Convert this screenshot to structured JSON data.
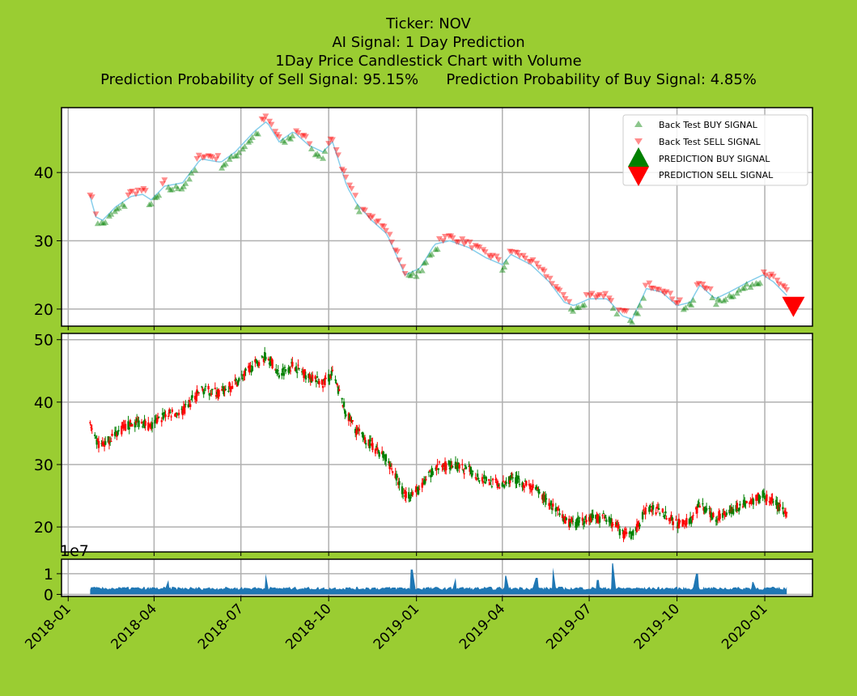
{
  "titles": {
    "line1": "Ticker: NOV",
    "line2": "AI Signal: 1 Day Prediction",
    "line3": "1Day Price Candlestick Chart with Volume",
    "line4": "Prediction Probability of Sell Signal: 95.15%      Prediction Probability of Buy Signal: 4.85%"
  },
  "colors": {
    "background": "#9acd32",
    "buy": "#008000",
    "sell": "#ff0000",
    "price_line": "#87ceeb",
    "volume": "#1f77b4",
    "grid": "#b0b0b0"
  },
  "chart_data": [
    {
      "type": "scatter",
      "panel": "signals",
      "ylim": [
        17.5,
        49.5
      ],
      "y_ticks": [
        "20",
        "30",
        "40"
      ],
      "x_range": [
        "2017-12-25",
        "2020-02-20"
      ],
      "grid": true,
      "legend": {
        "placement": "top-right",
        "entries": [
          "Back Test BUY SIGNAL",
          "Back Test SELL SIGNAL",
          "PREDICTION BUY SIGNAL",
          "PREDICTION SELL SIGNAL"
        ]
      },
      "prediction_sell": {
        "x": "2020-01-31",
        "y": 20.5
      },
      "price_path": [
        [
          "2018-01-24",
          36.5
        ],
        [
          "2018-01-30",
          33.5
        ],
        [
          "2018-02-06",
          33.0
        ],
        [
          "2018-02-20",
          35.0
        ],
        [
          "2018-03-08",
          36.5
        ],
        [
          "2018-03-20",
          36.8
        ],
        [
          "2018-03-29",
          36.0
        ],
        [
          "2018-04-12",
          38.0
        ],
        [
          "2018-05-01",
          38.5
        ],
        [
          "2018-05-20",
          42.0
        ],
        [
          "2018-06-10",
          41.5
        ],
        [
          "2018-06-25",
          43.0
        ],
        [
          "2018-07-15",
          46.0
        ],
        [
          "2018-07-28",
          47.5
        ],
        [
          "2018-08-10",
          44.5
        ],
        [
          "2018-08-25",
          46.0
        ],
        [
          "2018-09-10",
          44.0
        ],
        [
          "2018-09-25",
          43.0
        ],
        [
          "2018-10-05",
          44.5
        ],
        [
          "2018-10-20",
          38.0
        ],
        [
          "2018-10-30",
          35.5
        ],
        [
          "2018-11-15",
          33.0
        ],
        [
          "2018-12-01",
          31.0
        ],
        [
          "2018-12-20",
          25.0
        ],
        [
          "2019-01-05",
          26.0
        ],
        [
          "2019-01-20",
          29.5
        ],
        [
          "2019-02-05",
          30.0
        ],
        [
          "2019-02-25",
          29.0
        ],
        [
          "2019-03-15",
          27.5
        ],
        [
          "2019-04-01",
          26.5
        ],
        [
          "2019-04-10",
          28.0
        ],
        [
          "2019-05-01",
          26.5
        ],
        [
          "2019-05-20",
          24.0
        ],
        [
          "2019-06-05",
          21.0
        ],
        [
          "2019-06-15",
          20.5
        ],
        [
          "2019-07-01",
          21.5
        ],
        [
          "2019-07-20",
          21.5
        ],
        [
          "2019-08-05",
          19.0
        ],
        [
          "2019-08-15",
          18.5
        ],
        [
          "2019-08-30",
          23.0
        ],
        [
          "2019-09-15",
          22.5
        ],
        [
          "2019-10-01",
          20.5
        ],
        [
          "2019-10-15",
          21.0
        ],
        [
          "2019-10-25",
          23.5
        ],
        [
          "2019-11-10",
          21.5
        ],
        [
          "2019-11-25",
          22.5
        ],
        [
          "2019-12-15",
          24.0
        ],
        [
          "2019-12-30",
          25.0
        ],
        [
          "2020-01-10",
          24.0
        ],
        [
          "2020-01-24",
          22.0
        ]
      ],
      "sell_segments": [
        [
          "2018-01-24",
          "2018-01-30"
        ],
        [
          "2018-03-05",
          "2018-03-25"
        ],
        [
          "2018-04-08",
          "2018-04-14"
        ],
        [
          "2018-05-15",
          "2018-06-10"
        ],
        [
          "2018-07-20",
          "2018-08-10"
        ],
        [
          "2018-08-25",
          "2018-09-12"
        ],
        [
          "2018-10-01",
          "2018-10-30"
        ],
        [
          "2018-11-05",
          "2018-12-20"
        ],
        [
          "2019-01-25",
          "2019-03-31"
        ],
        [
          "2019-04-08",
          "2019-06-10"
        ],
        [
          "2019-06-28",
          "2019-07-25"
        ],
        [
          "2019-08-01",
          "2019-08-10"
        ],
        [
          "2019-08-28",
          "2019-10-05"
        ],
        [
          "2019-10-22",
          "2019-11-05"
        ],
        [
          "2019-12-28",
          "2020-01-24"
        ]
      ]
    },
    {
      "type": "candlestick",
      "panel": "price",
      "ylim": [
        16,
        51
      ],
      "y_ticks": [
        "20",
        "30",
        "40",
        "50"
      ],
      "grid": true,
      "up_color": "#008000",
      "down_color": "#ff0000"
    },
    {
      "type": "area",
      "panel": "volume",
      "ylim": [
        -0.1,
        1.7
      ],
      "y_ticks": [
        "0",
        "1"
      ],
      "offset_text": "1e7",
      "grid": true,
      "baseline": 0.3,
      "spikes": [
        [
          "2018-04-15",
          0.7
        ],
        [
          "2018-07-28",
          1.0
        ],
        [
          "2018-12-27",
          1.2
        ],
        [
          "2019-02-10",
          0.8
        ],
        [
          "2019-04-05",
          0.9
        ],
        [
          "2019-05-07",
          0.8
        ],
        [
          "2019-05-25",
          1.3
        ],
        [
          "2019-07-10",
          0.7
        ],
        [
          "2019-07-26",
          1.5
        ],
        [
          "2019-10-22",
          1.0
        ],
        [
          "2019-12-20",
          0.6
        ]
      ],
      "x_ticks": [
        "2018-01",
        "2018-04",
        "2018-07",
        "2018-10",
        "2019-01",
        "2019-04",
        "2019-07",
        "2019-10",
        "2020-01"
      ]
    }
  ]
}
